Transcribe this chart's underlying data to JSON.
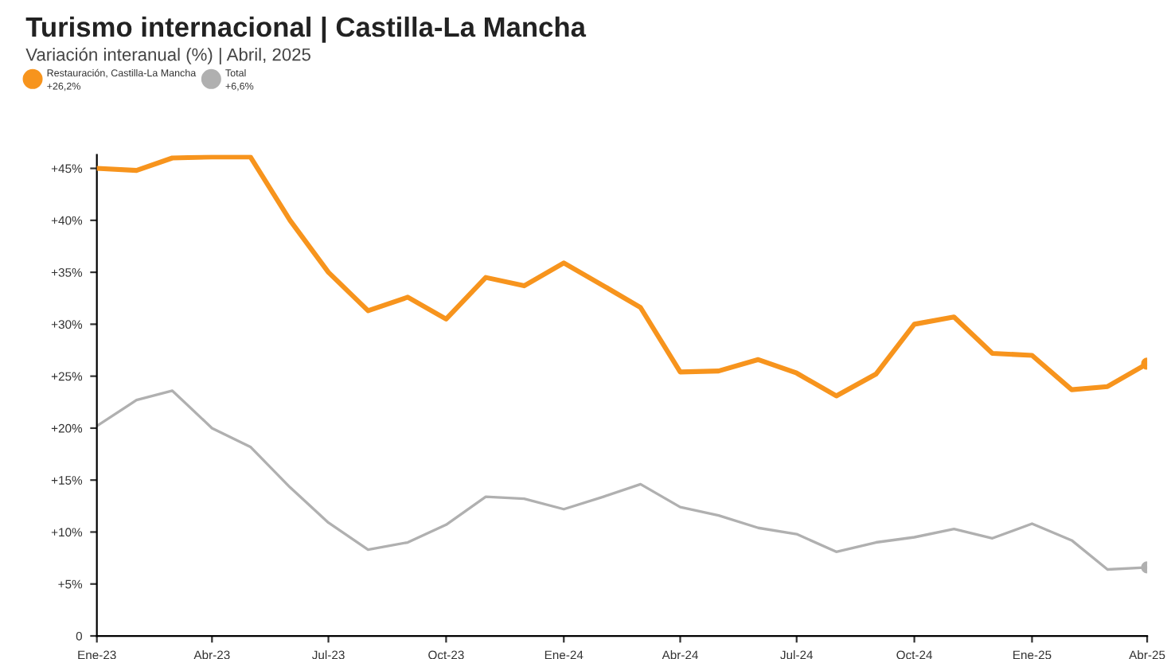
{
  "chart_data": {
    "type": "line",
    "title": "Turismo internacional | Castilla-La Mancha",
    "subtitle": "Variación interanual (%) | Abril, 2025",
    "x": [
      "2023-01",
      "2023-02",
      "2023-03",
      "2023-04",
      "2023-05",
      "2023-06",
      "2023-07",
      "2023-08",
      "2023-09",
      "2023-10",
      "2023-11",
      "2023-12",
      "2024-01",
      "2024-02",
      "2024-03",
      "2024-04",
      "2024-05",
      "2024-06",
      "2024-07",
      "2024-08",
      "2024-09",
      "2024-10",
      "2024-11",
      "2024-12",
      "2025-01",
      "2025-02",
      "2025-03",
      "2025-04"
    ],
    "series": [
      {
        "name": "Restauración, Castilla-La Mancha",
        "color": "#f7941d",
        "values": [
          45.0,
          44.8,
          46.0,
          46.1,
          46.1,
          40.0,
          35.0,
          31.3,
          32.6,
          30.5,
          34.5,
          33.7,
          35.9,
          33.7,
          31.6,
          25.4,
          25.5,
          26.6,
          25.3,
          23.1,
          25.2,
          30.0,
          30.7,
          27.2,
          27.0,
          23.7,
          24.0,
          26.2
        ]
      },
      {
        "name": "Total",
        "color": "#b0b0b0",
        "values": [
          20.2,
          22.7,
          23.6,
          20.0,
          18.2,
          14.3,
          10.9,
          8.3,
          9.0,
          10.7,
          13.4,
          13.2,
          12.2,
          13.4,
          14.6,
          12.4,
          11.6,
          10.4,
          9.8,
          8.1,
          9.0,
          9.5,
          10.3,
          9.4,
          10.8,
          9.2,
          6.4,
          6.6
        ]
      }
    ],
    "annotations": [
      "+26,2%",
      "+6,6%"
    ],
    "xlim": [
      "2023-01",
      "2025-04"
    ],
    "xticks": [
      {
        "value": "2023-01",
        "label": "Ene-23"
      },
      {
        "value": "2023-04",
        "label": "Abr-23"
      },
      {
        "value": "2023-07",
        "label": "Jul-23"
      },
      {
        "value": "2023-10",
        "label": "Oct-23"
      },
      {
        "value": "2024-01",
        "label": "Ene-24"
      },
      {
        "value": "2024-04",
        "label": "Abr-24"
      },
      {
        "value": "2024-07",
        "label": "Jul-24"
      },
      {
        "value": "2024-10",
        "label": "Oct-24"
      },
      {
        "value": "2025-01",
        "label": "Ene-25"
      },
      {
        "value": "2025-04",
        "label": "Abr-25"
      }
    ],
    "ylim": [
      0,
      46.3
    ],
    "yticks": [
      0,
      {
        "value": 5,
        "label": "+5%"
      },
      {
        "value": 10,
        "label": "+10%"
      },
      {
        "value": 15,
        "label": "+15%"
      },
      {
        "value": 20,
        "label": "+20%"
      },
      {
        "value": 25,
        "label": "+25%"
      },
      {
        "value": 30,
        "label": "+30%"
      },
      {
        "value": 35,
        "label": "+35%"
      },
      {
        "value": 40,
        "label": "+40%"
      },
      {
        "value": 45,
        "label": "+45%"
      }
    ],
    "grid": false,
    "legend": "top left"
  }
}
